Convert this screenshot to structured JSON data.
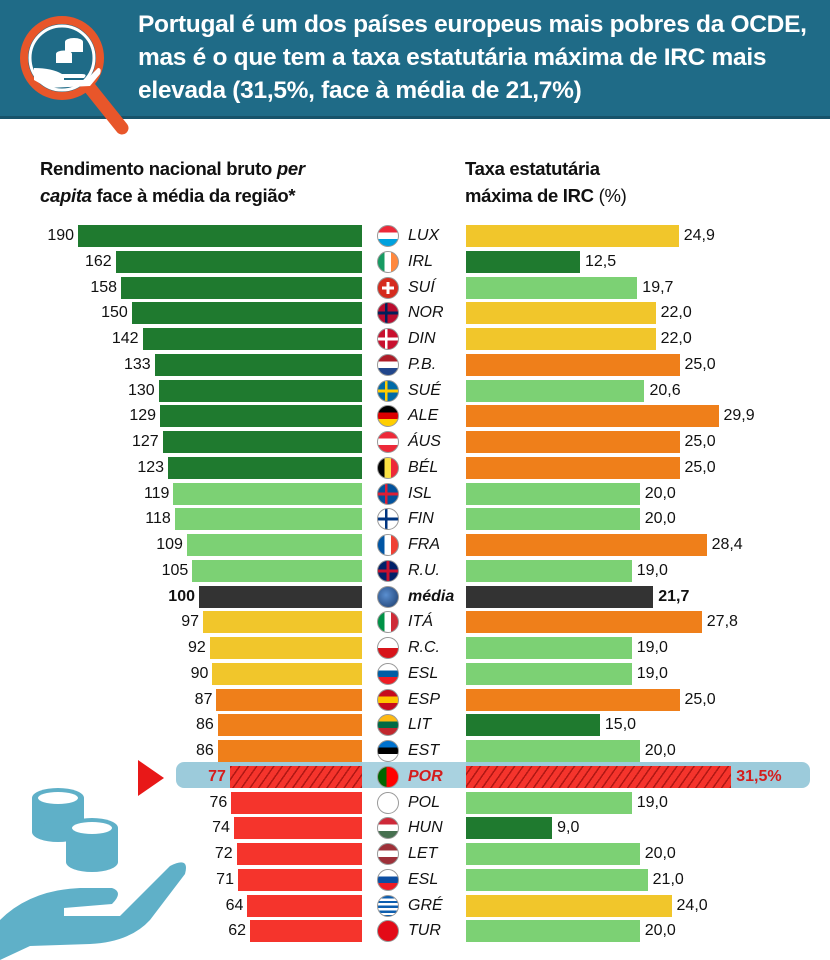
{
  "header": {
    "title": "Portugal é um dos países europeus mais pobres da OCDE, mas é o que tem a taxa estatutária máxima de IRC mais elevada (31,5%, face à média de 21,7%)",
    "icon": "magnifier-coins-hand-icon"
  },
  "colors": {
    "header_bg": "#1f6b87",
    "dark_green": "#1f7a2f",
    "light_green": "#7cd174",
    "yellow": "#f1c62b",
    "orange": "#ef7f1a",
    "red": "#f5342c",
    "average": "#333333",
    "highlight": "#9ccbdb"
  },
  "chart_data": {
    "type": "bar",
    "orientation": "horizontal",
    "left_title_pre": "Rendimento nacional bruto ",
    "left_title_italic1": "per",
    "left_title_italic2": "capita",
    "left_title_post": " face à média da região*",
    "right_title_line1": "Taxa estatutária",
    "right_title_line2": "máxima de IRC",
    "right_title_unit": " (%)",
    "rows": [
      {
        "code": "LUX",
        "left": "190",
        "lv": 190,
        "lc": "dark_green",
        "right": "24,9",
        "rv": 24.9,
        "rc": "yellow",
        "flag": [
          "#ed2939",
          "#ffffff",
          "#00a1de"
        ],
        "fdir": "h"
      },
      {
        "code": "IRL",
        "left": "162",
        "lv": 162,
        "lc": "dark_green",
        "right": "12,5",
        "rv": 12.5,
        "rc": "dark_green",
        "flag": [
          "#169b62",
          "#ffffff",
          "#ff883e"
        ],
        "fdir": "v"
      },
      {
        "code": "SUÍ",
        "left": "158",
        "lv": 158,
        "lc": "dark_green",
        "right": "19,7",
        "rv": 19.7,
        "rc": "light_green",
        "flag": [
          "#d52b1e"
        ],
        "fdir": "cross-white"
      },
      {
        "code": "NOR",
        "left": "150",
        "lv": 150,
        "lc": "dark_green",
        "right": "22,0",
        "rv": 22.0,
        "rc": "yellow",
        "flag": [
          "#ba0c2f",
          "#00205b"
        ],
        "fdir": "nordic"
      },
      {
        "code": "DIN",
        "left": "142",
        "lv": 142,
        "lc": "dark_green",
        "right": "22,0",
        "rv": 22.0,
        "rc": "yellow",
        "flag": [
          "#c8102e",
          "#ffffff"
        ],
        "fdir": "nordic"
      },
      {
        "code": "P.B.",
        "left": "133",
        "lv": 133,
        "lc": "dark_green",
        "right": "25,0",
        "rv": 25.0,
        "rc": "orange",
        "flag": [
          "#ae1c28",
          "#ffffff",
          "#21468b"
        ],
        "fdir": "h"
      },
      {
        "code": "SUÉ",
        "left": "130",
        "lv": 130,
        "lc": "dark_green",
        "right": "20,6",
        "rv": 20.6,
        "rc": "light_green",
        "flag": [
          "#006aa7",
          "#fecc00"
        ],
        "fdir": "nordic"
      },
      {
        "code": "ALE",
        "left": "129",
        "lv": 129,
        "lc": "dark_green",
        "right": "29,9",
        "rv": 29.9,
        "rc": "orange",
        "flag": [
          "#000000",
          "#dd0000",
          "#ffce00"
        ],
        "fdir": "h"
      },
      {
        "code": "ÁUS",
        "left": "127",
        "lv": 127,
        "lc": "dark_green",
        "right": "25,0",
        "rv": 25.0,
        "rc": "orange",
        "flag": [
          "#ed2939",
          "#ffffff",
          "#ed2939"
        ],
        "fdir": "h"
      },
      {
        "code": "BÉL",
        "left": "123",
        "lv": 123,
        "lc": "dark_green",
        "right": "25,0",
        "rv": 25.0,
        "rc": "orange",
        "flag": [
          "#000000",
          "#fae042",
          "#ed2939"
        ],
        "fdir": "v"
      },
      {
        "code": "ISL",
        "left": "119",
        "lv": 119,
        "lc": "light_green",
        "right": "20,0",
        "rv": 20.0,
        "rc": "light_green",
        "flag": [
          "#02529c",
          "#dc1e35"
        ],
        "fdir": "nordic"
      },
      {
        "code": "FIN",
        "left": "118",
        "lv": 118,
        "lc": "light_green",
        "right": "20,0",
        "rv": 20.0,
        "rc": "light_green",
        "flag": [
          "#ffffff",
          "#003580"
        ],
        "fdir": "nordic"
      },
      {
        "code": "FRA",
        "left": "109",
        "lv": 109,
        "lc": "light_green",
        "right": "28,4",
        "rv": 28.4,
        "rc": "orange",
        "flag": [
          "#0055a4",
          "#ffffff",
          "#ef4135"
        ],
        "fdir": "v"
      },
      {
        "code": "R.U.",
        "left": "105",
        "lv": 105,
        "lc": "light_green",
        "right": "19,0",
        "rv": 19.0,
        "rc": "light_green",
        "flag": [
          "#012169",
          "#c8102e"
        ],
        "fdir": "uk"
      },
      {
        "code": "média",
        "left": "100",
        "lv": 100,
        "lc": "average",
        "right": "21,7",
        "rv": 21.7,
        "rc": "average",
        "flag": [
          "#1a3a6b",
          "#5a8fd0"
        ],
        "fdir": "globe",
        "kind": "media"
      },
      {
        "code": "ITÁ",
        "left": "97",
        "lv": 97,
        "lc": "yellow",
        "right": "27,8",
        "rv": 27.8,
        "rc": "orange",
        "flag": [
          "#009246",
          "#ffffff",
          "#ce2b37"
        ],
        "fdir": "v"
      },
      {
        "code": "R.C.",
        "left": "92",
        "lv": 92,
        "lc": "yellow",
        "right": "19,0",
        "rv": 19.0,
        "rc": "light_green",
        "flag": [
          "#ffffff",
          "#d7141a",
          "#11457e"
        ],
        "fdir": "cz"
      },
      {
        "code": "ESL",
        "left": "90",
        "lv": 90,
        "lc": "yellow",
        "right": "19,0",
        "rv": 19.0,
        "rc": "light_green",
        "flag": [
          "#ffffff",
          "#005da4",
          "#ed1c24"
        ],
        "fdir": "h"
      },
      {
        "code": "ESP",
        "left": "87",
        "lv": 87,
        "lc": "orange",
        "right": "25,0",
        "rv": 25.0,
        "rc": "orange",
        "flag": [
          "#c60b1e",
          "#ffc400",
          "#c60b1e"
        ],
        "fdir": "h"
      },
      {
        "code": "LIT",
        "left": "86",
        "lv": 86,
        "lc": "orange",
        "right": "15,0",
        "rv": 15.0,
        "rc": "dark_green",
        "flag": [
          "#fdb913",
          "#006a44",
          "#c1272d"
        ],
        "fdir": "h"
      },
      {
        "code": "EST",
        "left": "86",
        "lv": 86,
        "lc": "orange",
        "right": "20,0",
        "rv": 20.0,
        "rc": "light_green",
        "flag": [
          "#0072ce",
          "#000000",
          "#ffffff"
        ],
        "fdir": "h"
      },
      {
        "code": "POR",
        "left": "77",
        "lv": 77,
        "lc": "red",
        "right": "31,5%",
        "rv": 31.5,
        "rc": "red",
        "flag": [
          "#006600",
          "#ff0000"
        ],
        "fdir": "pt",
        "kind": "por"
      },
      {
        "code": "POL",
        "left": "76",
        "lv": 76,
        "lc": "red",
        "right": "19,0",
        "rv": 19.0,
        "rc": "light_green",
        "flag": [
          "#ffffff",
          "#dc143c"
        ],
        "fdir": "h"
      },
      {
        "code": "HUN",
        "left": "74",
        "lv": 74,
        "lc": "red",
        "right": "9,0",
        "rv": 9.0,
        "rc": "dark_green",
        "flag": [
          "#ce2939",
          "#ffffff",
          "#477050"
        ],
        "fdir": "h"
      },
      {
        "code": "LET",
        "left": "72",
        "lv": 72,
        "lc": "red",
        "right": "20,0",
        "rv": 20.0,
        "rc": "light_green",
        "flag": [
          "#9e3039",
          "#ffffff",
          "#9e3039"
        ],
        "fdir": "h"
      },
      {
        "code": "ESL",
        "left": "71",
        "lv": 71,
        "lc": "red",
        "right": "21,0",
        "rv": 21.0,
        "rc": "light_green",
        "flag": [
          "#ffffff",
          "#0b4ea2",
          "#ee1c25"
        ],
        "fdir": "h"
      },
      {
        "code": "GRÉ",
        "left": "64",
        "lv": 64,
        "lc": "red",
        "right": "24,0",
        "rv": 24.0,
        "rc": "yellow",
        "flag": [
          "#0d5eaf",
          "#ffffff"
        ],
        "fdir": "gr"
      },
      {
        "code": "TUR",
        "left": "62",
        "lv": 62,
        "lc": "red",
        "right": "20,0",
        "rv": 20.0,
        "rc": "light_green",
        "flag": [
          "#e30a17"
        ],
        "fdir": "solid"
      }
    ]
  }
}
